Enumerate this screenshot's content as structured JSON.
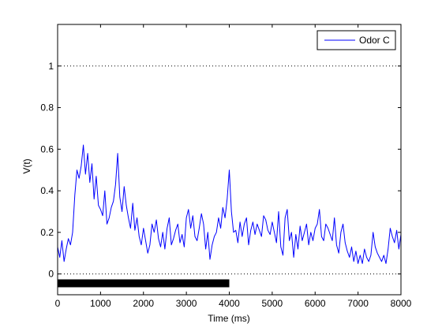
{
  "chart_data": {
    "type": "line",
    "title": "",
    "xlabel": "Time (ms)",
    "ylabel": "V(t)",
    "xlim": [
      0,
      8000
    ],
    "ylim": [
      -0.1,
      1.2
    ],
    "xticks": [
      0,
      1000,
      2000,
      3000,
      4000,
      5000,
      6000,
      7000,
      8000
    ],
    "yticks": [
      0,
      0.2,
      0.4,
      0.6,
      0.8,
      1
    ],
    "ytick_labels": [
      "0",
      "0.2",
      "0.4",
      "0.6",
      "0.8",
      "1"
    ],
    "xtick_labels": [
      "0",
      "1000",
      "2000",
      "3000",
      "4000",
      "5000",
      "6000",
      "7000",
      "8000"
    ],
    "grid": false,
    "reference_lines": [
      {
        "y": 1,
        "style": "dotted"
      },
      {
        "y": 0,
        "style": "dotted"
      }
    ],
    "stimulus_bar": {
      "x_start": 0,
      "x_end": 4000,
      "y": -0.045,
      "color": "#000000"
    },
    "legend": {
      "placement": "top-right"
    },
    "series": [
      {
        "name": "Odor C",
        "color": "#0000ff",
        "x": [
          0,
          50,
          100,
          150,
          200,
          250,
          300,
          350,
          400,
          450,
          500,
          550,
          600,
          650,
          700,
          750,
          800,
          850,
          900,
          950,
          1000,
          1050,
          1100,
          1150,
          1200,
          1250,
          1300,
          1350,
          1400,
          1450,
          1500,
          1550,
          1600,
          1650,
          1700,
          1750,
          1800,
          1850,
          1900,
          1950,
          2000,
          2050,
          2100,
          2150,
          2200,
          2250,
          2300,
          2350,
          2400,
          2450,
          2500,
          2550,
          2600,
          2650,
          2700,
          2750,
          2800,
          2850,
          2900,
          2950,
          3000,
          3050,
          3100,
          3150,
          3200,
          3250,
          3300,
          3350,
          3400,
          3450,
          3500,
          3550,
          3600,
          3650,
          3700,
          3750,
          3800,
          3850,
          3900,
          3950,
          4000,
          4050,
          4100,
          4150,
          4200,
          4250,
          4300,
          4350,
          4400,
          4450,
          4500,
          4550,
          4600,
          4650,
          4700,
          4750,
          4800,
          4850,
          4900,
          4950,
          5000,
          5050,
          5100,
          5150,
          5200,
          5250,
          5300,
          5350,
          5400,
          5450,
          5500,
          5550,
          5600,
          5650,
          5700,
          5750,
          5800,
          5850,
          5900,
          5950,
          6000,
          6050,
          6100,
          6150,
          6200,
          6250,
          6300,
          6350,
          6400,
          6450,
          6500,
          6550,
          6600,
          6650,
          6700,
          6750,
          6800,
          6850,
          6900,
          6950,
          7000,
          7050,
          7100,
          7150,
          7200,
          7250,
          7300,
          7350,
          7400,
          7450,
          7500,
          7550,
          7600,
          7650,
          7700,
          7750,
          7800,
          7850,
          7900,
          7950,
          8000
        ],
        "y": [
          0.13,
          0.08,
          0.16,
          0.06,
          0.12,
          0.17,
          0.14,
          0.2,
          0.38,
          0.5,
          0.46,
          0.52,
          0.62,
          0.48,
          0.58,
          0.44,
          0.53,
          0.36,
          0.47,
          0.33,
          0.31,
          0.28,
          0.4,
          0.24,
          0.27,
          0.32,
          0.35,
          0.43,
          0.58,
          0.37,
          0.3,
          0.42,
          0.33,
          0.27,
          0.22,
          0.34,
          0.21,
          0.27,
          0.18,
          0.14,
          0.22,
          0.16,
          0.1,
          0.14,
          0.24,
          0.2,
          0.26,
          0.17,
          0.13,
          0.2,
          0.12,
          0.22,
          0.27,
          0.14,
          0.17,
          0.21,
          0.24,
          0.15,
          0.19,
          0.13,
          0.27,
          0.31,
          0.22,
          0.28,
          0.18,
          0.16,
          0.22,
          0.29,
          0.24,
          0.12,
          0.2,
          0.07,
          0.14,
          0.18,
          0.2,
          0.27,
          0.22,
          0.32,
          0.27,
          0.36,
          0.5,
          0.3,
          0.2,
          0.21,
          0.15,
          0.25,
          0.18,
          0.24,
          0.27,
          0.14,
          0.21,
          0.25,
          0.19,
          0.24,
          0.21,
          0.18,
          0.28,
          0.26,
          0.21,
          0.19,
          0.25,
          0.2,
          0.15,
          0.3,
          0.13,
          0.09,
          0.27,
          0.31,
          0.16,
          0.2,
          0.08,
          0.19,
          0.12,
          0.23,
          0.16,
          0.2,
          0.24,
          0.14,
          0.2,
          0.16,
          0.22,
          0.24,
          0.31,
          0.18,
          0.16,
          0.24,
          0.22,
          0.19,
          0.16,
          0.27,
          0.14,
          0.1,
          0.2,
          0.24,
          0.15,
          0.11,
          0.08,
          0.13,
          0.06,
          0.11,
          0.05,
          0.09,
          0.05,
          0.12,
          0.08,
          0.06,
          0.09,
          0.2,
          0.13,
          0.1,
          0.08,
          0.06,
          0.09,
          0.05,
          0.12,
          0.22,
          0.18,
          0.15,
          0.21,
          0.12,
          0.19
        ]
      }
    ]
  }
}
